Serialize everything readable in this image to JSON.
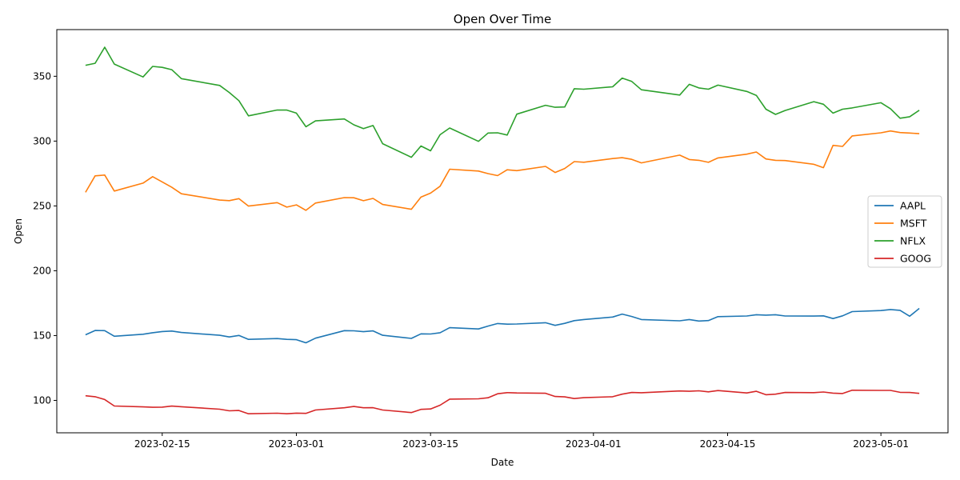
{
  "chart_data": {
    "type": "line",
    "title": "Open Over Time",
    "xlabel": "Date",
    "ylabel": "Open",
    "xlim": [
      "2023-02-04",
      "2023-05-08"
    ],
    "ylim": [
      75,
      386
    ],
    "xticks": [
      "2023-02-15",
      "2023-03-01",
      "2023-03-15",
      "2023-04-01",
      "2023-04-15",
      "2023-05-01"
    ],
    "yticks": [
      100,
      150,
      200,
      250,
      300,
      350
    ],
    "grid": false,
    "legend_position": "center-right",
    "x": [
      "2023-02-07",
      "2023-02-08",
      "2023-02-09",
      "2023-02-10",
      "2023-02-13",
      "2023-02-14",
      "2023-02-15",
      "2023-02-16",
      "2023-02-17",
      "2023-02-21",
      "2023-02-22",
      "2023-02-23",
      "2023-02-24",
      "2023-02-27",
      "2023-02-28",
      "2023-03-01",
      "2023-03-02",
      "2023-03-03",
      "2023-03-06",
      "2023-03-07",
      "2023-03-08",
      "2023-03-09",
      "2023-03-10",
      "2023-03-13",
      "2023-03-14",
      "2023-03-15",
      "2023-03-16",
      "2023-03-17",
      "2023-03-20",
      "2023-03-21",
      "2023-03-22",
      "2023-03-23",
      "2023-03-24",
      "2023-03-27",
      "2023-03-28",
      "2023-03-29",
      "2023-03-30",
      "2023-03-31",
      "2023-04-03",
      "2023-04-04",
      "2023-04-05",
      "2023-04-06",
      "2023-04-10",
      "2023-04-11",
      "2023-04-12",
      "2023-04-13",
      "2023-04-14",
      "2023-04-17",
      "2023-04-18",
      "2023-04-19",
      "2023-04-20",
      "2023-04-21",
      "2023-04-24",
      "2023-04-25",
      "2023-04-26",
      "2023-04-27",
      "2023-04-28",
      "2023-05-01",
      "2023-05-02",
      "2023-05-03",
      "2023-05-04",
      "2023-05-05"
    ],
    "series": [
      {
        "name": "AAPL",
        "color": "#1f77b4",
        "values": [
          150.6,
          153.9,
          153.8,
          149.5,
          151.0,
          152.2,
          153.1,
          153.5,
          152.4,
          150.2,
          148.9,
          150.1,
          147.1,
          147.7,
          147.1,
          146.8,
          144.4,
          148.0,
          153.8,
          153.7,
          153.0,
          153.6,
          150.2,
          147.8,
          151.3,
          151.2,
          152.2,
          156.1,
          155.1,
          157.3,
          159.3,
          158.8,
          158.9,
          159.9,
          157.9,
          159.4,
          161.5,
          162.4,
          164.3,
          166.6,
          164.7,
          162.4,
          161.4,
          162.4,
          161.2,
          161.6,
          164.6,
          165.1,
          166.1,
          165.8,
          166.1,
          165.1,
          165.0,
          165.2,
          163.1,
          165.2,
          168.5,
          169.3,
          170.1,
          169.5,
          164.9,
          170.98
        ]
      },
      {
        "name": "MSFT",
        "color": "#ff7f0e",
        "values": [
          260.5,
          273.2,
          273.8,
          261.5,
          267.6,
          272.6,
          268.5,
          264.4,
          259.4,
          254.5,
          254.1,
          255.6,
          249.9,
          252.5,
          249.1,
          250.8,
          246.6,
          252.2,
          256.4,
          256.3,
          254.0,
          255.8,
          251.1,
          247.4,
          256.8,
          259.9,
          265.2,
          278.3,
          276.9,
          274.9,
          273.4,
          277.9,
          277.2,
          280.5,
          275.8,
          278.9,
          284.2,
          283.7,
          286.5,
          287.2,
          285.9,
          283.2,
          289.2,
          285.8,
          285.2,
          283.6,
          287.0,
          289.9,
          291.6,
          286.2,
          285.2,
          285.0,
          282.1,
          279.5,
          296.7,
          295.9,
          304.0,
          306.4,
          307.8,
          306.6,
          306.2,
          305.7
        ]
      },
      {
        "name": "NFLX",
        "color": "#2ca02c",
        "values": [
          358.5,
          360.0,
          372.4,
          359.4,
          349.5,
          357.6,
          356.9,
          355.1,
          348.2,
          342.9,
          337.5,
          331.2,
          319.5,
          324.0,
          323.9,
          321.6,
          311.1,
          315.6,
          317.1,
          312.6,
          309.6,
          312.0,
          298.0,
          287.5,
          296.2,
          292.5,
          304.9,
          310.1,
          299.8,
          306.2,
          306.4,
          304.7,
          320.8,
          327.6,
          326.1,
          326.3,
          340.4,
          340.0,
          341.9,
          348.6,
          346.0,
          339.6,
          335.5,
          343.8,
          341.0,
          340.0,
          343.2,
          338.3,
          335.3,
          324.6,
          320.6,
          323.6,
          330.4,
          328.4,
          321.6,
          324.6,
          325.6,
          329.6,
          325.0,
          317.6,
          318.8,
          323.8
        ]
      },
      {
        "name": "GOOG",
        "color": "#d62728",
        "values": [
          103.6,
          102.8,
          100.7,
          95.7,
          95.0,
          94.7,
          94.8,
          95.6,
          95.1,
          93.2,
          92.0,
          92.2,
          89.7,
          90.1,
          89.7,
          90.2,
          90.0,
          92.6,
          94.3,
          95.3,
          94.3,
          94.4,
          92.6,
          90.6,
          93.1,
          93.4,
          96.3,
          101.0,
          101.2,
          102.0,
          105.1,
          106.0,
          105.7,
          105.5,
          103.0,
          102.7,
          101.4,
          102.1,
          102.8,
          104.8,
          106.1,
          105.9,
          107.3,
          107.0,
          107.4,
          106.6,
          107.6,
          105.7,
          107.0,
          104.4,
          104.8,
          106.1,
          106.0,
          106.5,
          105.6,
          105.3,
          107.8,
          107.7,
          107.7,
          106.2,
          106.1,
          105.4
        ]
      }
    ]
  }
}
